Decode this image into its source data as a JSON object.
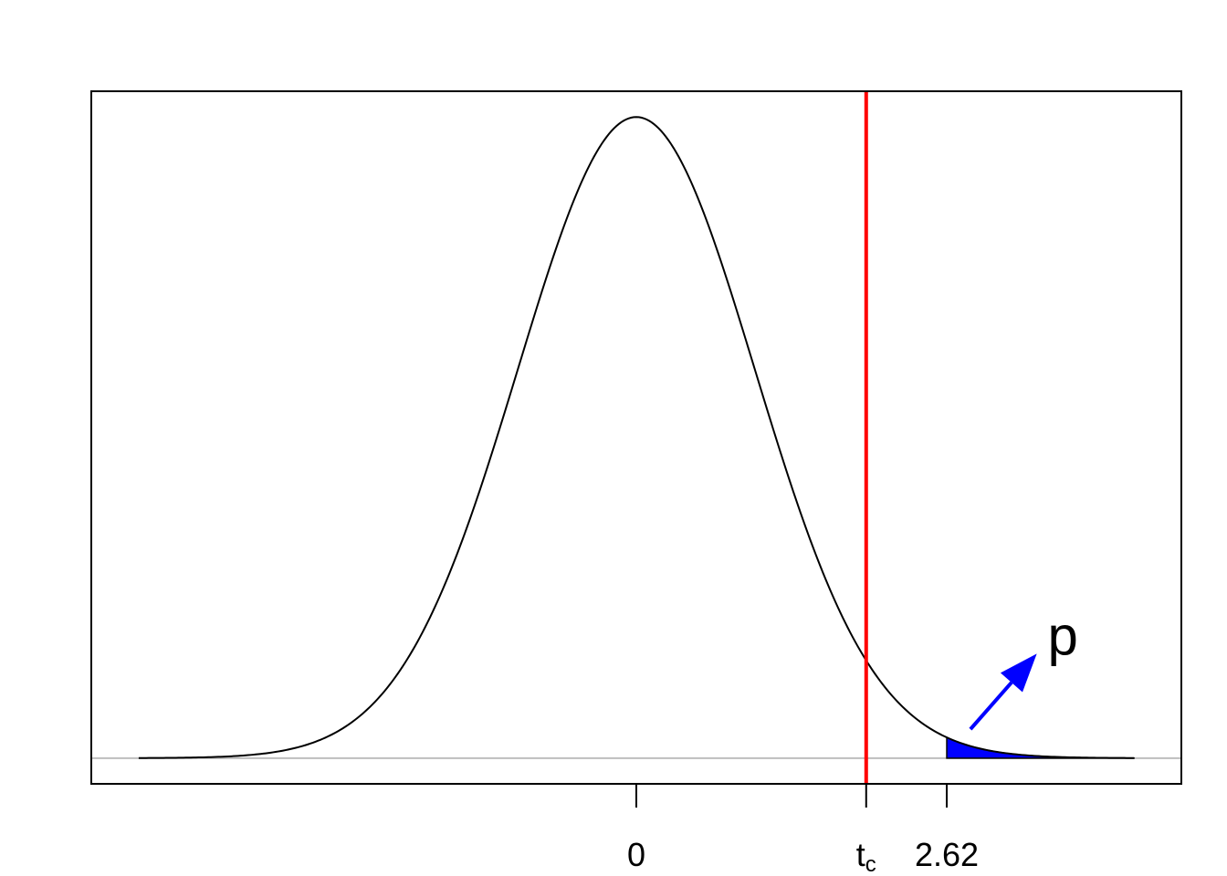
{
  "chart_data": {
    "type": "area",
    "distribution": "t-density",
    "xlim": [
      -4.6,
      4.6
    ],
    "ylim": [
      -0.016,
      0.415
    ],
    "baseline_y": 0,
    "x_ticks": [
      {
        "value": 0,
        "label": "0"
      },
      {
        "value": 1.94,
        "label": "t",
        "subscript": "c"
      },
      {
        "value": 2.62,
        "label": "2.62"
      }
    ],
    "critical_value": 1.94,
    "observed_value": 2.62,
    "tail_shading": {
      "from": 2.62,
      "to": 4.6
    },
    "annotation": {
      "text": "p",
      "arrow_from": [
        2.82,
        0.018
      ],
      "arrow_to": [
        3.38,
        0.065
      ],
      "text_at": [
        3.6,
        0.07
      ]
    },
    "colors": {
      "curve": "#000000",
      "critical_line": "#ff0000",
      "tail_fill": "#0000ff",
      "arrow": "#0000ff",
      "baseline": "#bebebe",
      "frame": "#000000"
    }
  }
}
